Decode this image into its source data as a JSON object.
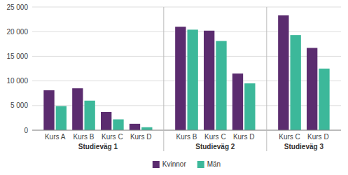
{
  "chart_data": {
    "type": "bar",
    "groups": [
      {
        "label": "Studieväg 1",
        "categories": [
          "Kurs A",
          "Kurs B",
          "Kurs C",
          "Kurs D"
        ]
      },
      {
        "label": "Studieväg 2",
        "categories": [
          "Kurs B",
          "Kurs C",
          "Kurs D"
        ]
      },
      {
        "label": "Studieväg 3",
        "categories": [
          "Kurs C",
          "Kurs D"
        ]
      }
    ],
    "series": [
      {
        "name": "Kvinnor",
        "color": "#5b2c6f",
        "values": [
          8100,
          8500,
          3700,
          1300,
          21000,
          20200,
          11500,
          23300,
          16700
        ]
      },
      {
        "name": "Män",
        "color": "#3cb89a",
        "values": [
          4900,
          6000,
          2200,
          600,
          20400,
          18100,
          9500,
          19300,
          12500
        ]
      }
    ],
    "ylim": [
      0,
      25000
    ],
    "yticks": [
      0,
      {
        "value": 5000,
        "label": "5 000"
      },
      {
        "value": 10000,
        "label": "10 000"
      },
      {
        "value": 15000,
        "label": "15 000"
      },
      {
        "value": 20000,
        "label": "20 000"
      },
      {
        "value": 25000,
        "label": "25 000"
      }
    ],
    "grid": true,
    "legend": "bottom"
  }
}
